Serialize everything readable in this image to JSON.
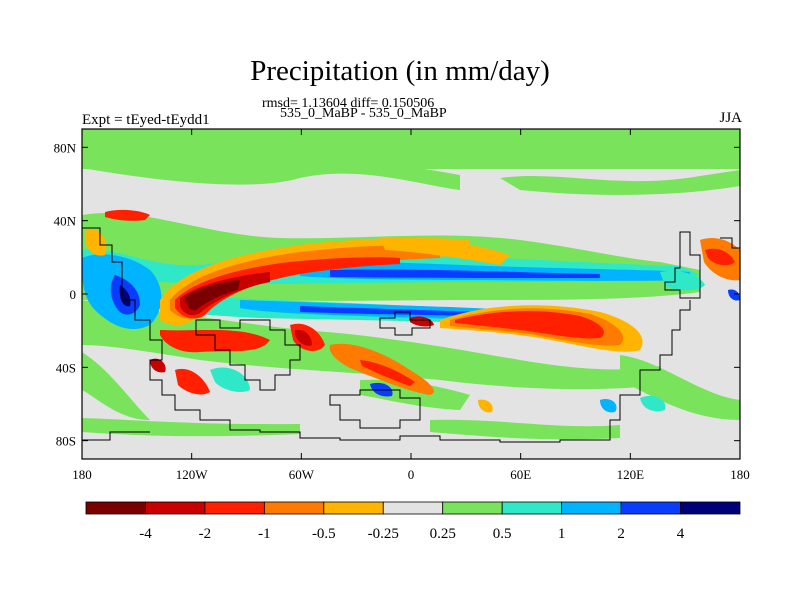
{
  "title": "Precipitation (in mm/day)",
  "stats_line": "rmsd= 1.13604 diff= 0.150506",
  "runs_line": "535_0_MaBP - 535_0_MaBP",
  "experiment_label": "Expt = tEyed-tEydd1",
  "season_label": "JJA",
  "map": {
    "lon_ticks": [
      "180",
      "120W",
      "60W",
      "0",
      "60E",
      "120E",
      "180"
    ],
    "lat_ticks": [
      "80N",
      "40N",
      "0",
      "40S",
      "80S"
    ],
    "background_color": "#e3e3e3"
  },
  "colorbar": {
    "colors": [
      "#7a0000",
      "#c80000",
      "#ff2000",
      "#ff7a00",
      "#ffb400",
      "#e3e3e3",
      "#7ae35c",
      "#2ee8c8",
      "#00b4ff",
      "#0a3cff",
      "#00007a"
    ],
    "labels": [
      "-4",
      "-2",
      "-1",
      "-0.5",
      "-0.25",
      "0.25",
      "0.5",
      "1",
      "2",
      "4"
    ]
  }
}
